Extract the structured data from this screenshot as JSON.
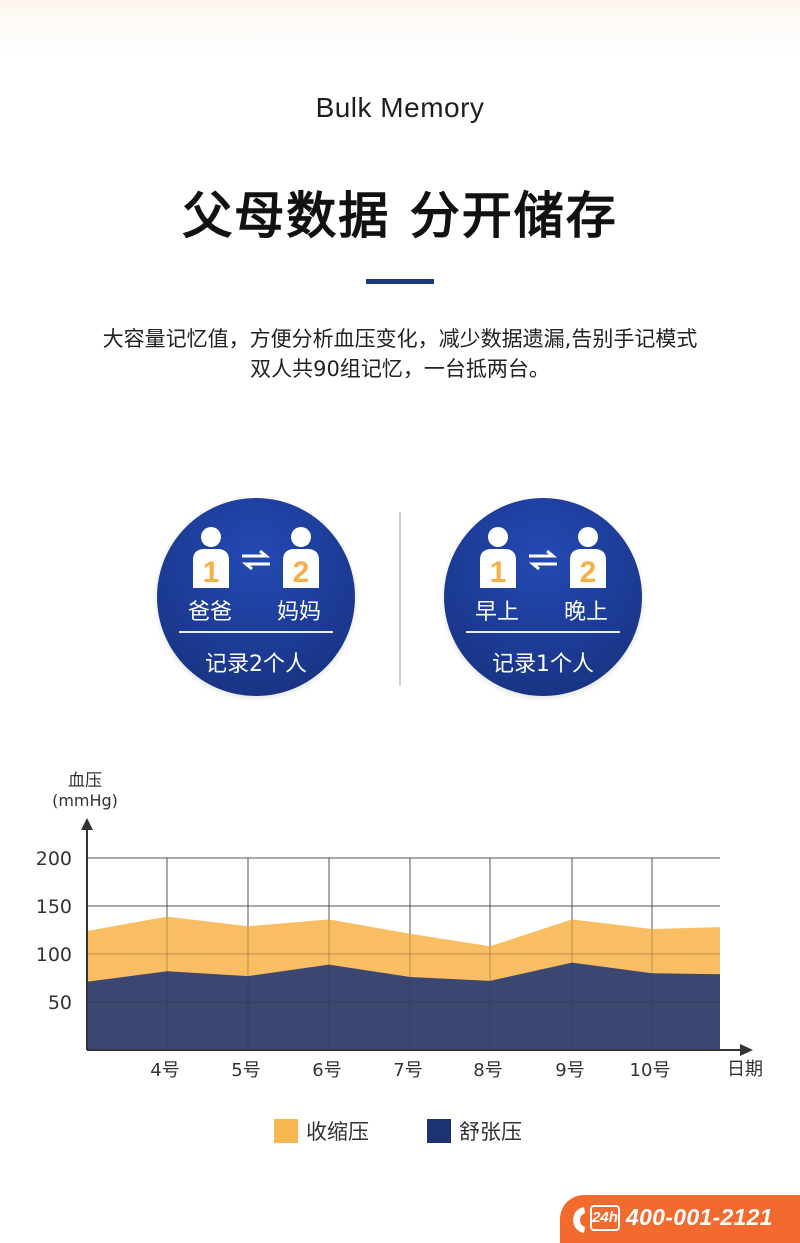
{
  "header": {
    "subtitle": "Bulk Memory",
    "title": "父母数据 分开储存",
    "accent_color": "#1b3a7a"
  },
  "description": {
    "line1": "大容量记忆值，方便分析血压变化，减少数据遗漏,告别手记模式",
    "line2": "双人共90组记忆，一台抵两台。"
  },
  "badges": [
    {
      "person1_number": "1",
      "person2_number": "2",
      "left_label": "爸爸",
      "right_label": "妈妈",
      "bottom_label": "记录2个人",
      "icon_left": "person-icon",
      "icon_swap": "swap-arrows-icon",
      "icon_right": "person-icon"
    },
    {
      "person1_number": "1",
      "person2_number": "2",
      "left_label": "早上",
      "right_label": "晚上",
      "bottom_label": "记录1个人",
      "icon_left": "person-icon",
      "icon_swap": "swap-arrows-icon",
      "icon_right": "person-icon"
    }
  ],
  "badge_colors": {
    "circle": "#1c3b94",
    "person_fill": "#ffffff",
    "number_fill": "#f5b04a"
  },
  "chart_data": {
    "type": "area",
    "ylabel": "血压",
    "yunit": "(mmHg)",
    "xlabel": "日期",
    "x_ticks": [
      "4号",
      "5号",
      "6号",
      "7号",
      "8号",
      "9号",
      "10号"
    ],
    "y_ticks": [
      200,
      150,
      100,
      50
    ],
    "ylim": [
      0,
      200
    ],
    "grid": true,
    "x_positions": [
      "start",
      "4号",
      "5号",
      "6号",
      "7号",
      "8号",
      "9号",
      "10号",
      "end"
    ],
    "series": [
      {
        "name": "收缩压",
        "color": "#f8b653",
        "values": [
          124,
          139,
          129,
          136,
          121,
          108,
          136,
          126,
          128
        ]
      },
      {
        "name": "舒张压",
        "color": "#1c3372",
        "values": [
          71,
          82,
          77,
          89,
          76,
          72,
          91,
          80,
          79
        ]
      }
    ],
    "legend_position": "bottom"
  },
  "legend": [
    {
      "label": "收缩压",
      "color": "#f8b653"
    },
    {
      "label": "舒张压",
      "color": "#1c3372"
    }
  ],
  "hotline": {
    "badge": "24h",
    "number": "400-001-2121",
    "icon": "phone-icon",
    "color": "#f26a2e"
  }
}
